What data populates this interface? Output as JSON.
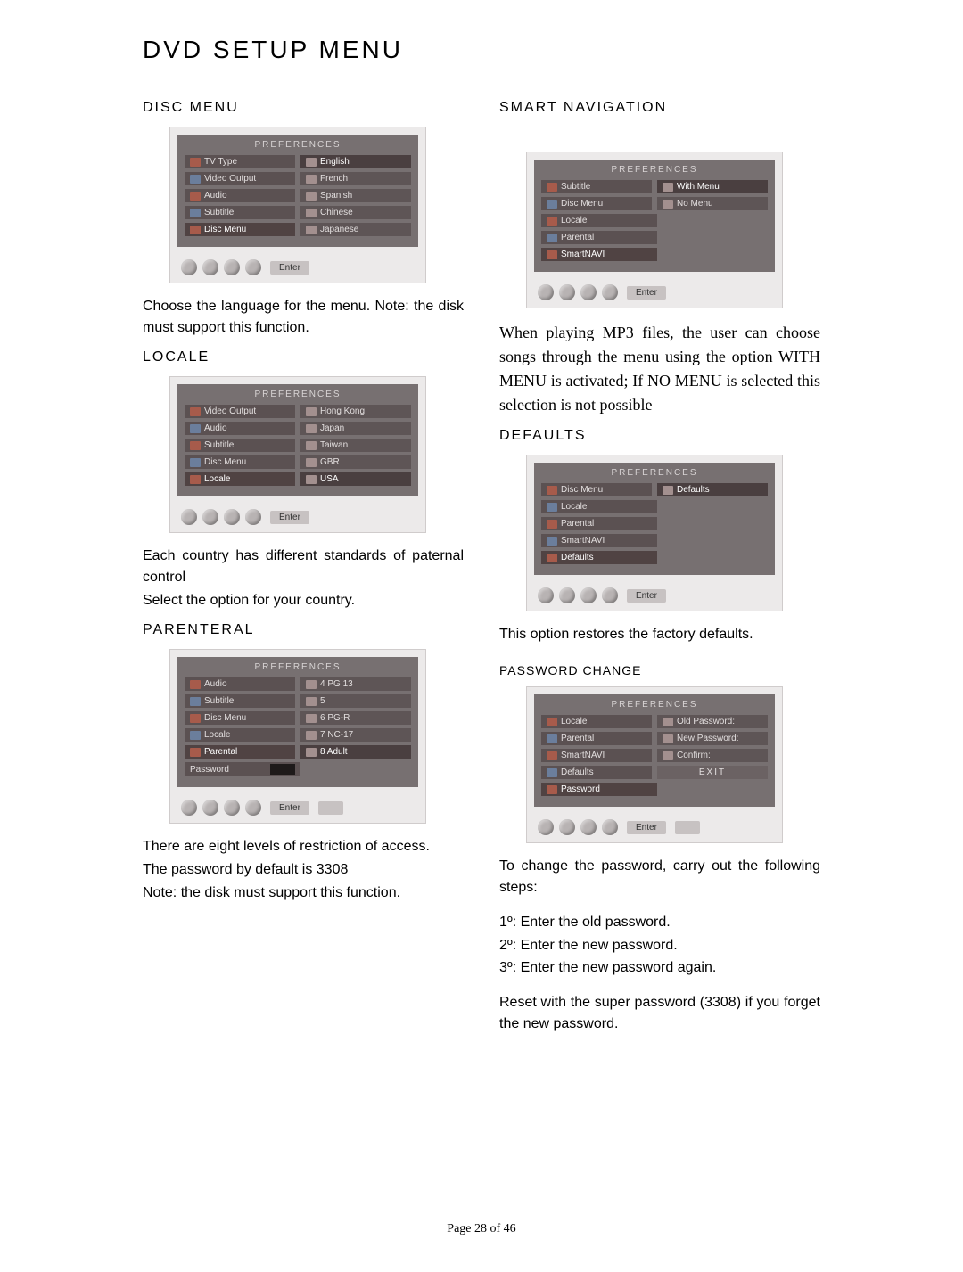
{
  "title": "DVD SETUP MENU",
  "footer": "Page 28 of 46",
  "common": {
    "preferences_label": "PREFERENCES",
    "enter_label": "Enter"
  },
  "left": {
    "disc_menu": {
      "heading": "DISC MENU",
      "screenshot": {
        "left_items": [
          "TV Type",
          "Video Output",
          "Audio",
          "Subtitle",
          "Disc Menu"
        ],
        "left_highlight": 4,
        "right_items": [
          "English",
          "French",
          "Spanish",
          "Chinese",
          "Japanese"
        ],
        "right_highlight": 0
      },
      "para": "Choose the language for the menu. Note: the disk must support this function."
    },
    "locale": {
      "heading": "LOCALE",
      "screenshot": {
        "left_items": [
          "Video Output",
          "Audio",
          "Subtitle",
          "Disc Menu",
          "Locale"
        ],
        "left_highlight": 4,
        "right_items": [
          "Hong Kong",
          "Japan",
          "Taiwan",
          "GBR",
          "USA"
        ],
        "right_highlight": 4
      },
      "para1": "Each country has different standards of paternal control",
      "para2": "Select the option for your country."
    },
    "parenteral": {
      "heading": "PARENTERAL",
      "screenshot": {
        "left_items": [
          "Audio",
          "Subtitle",
          "Disc Menu",
          "Locale",
          "Parental"
        ],
        "left_highlight": 4,
        "right_items": [
          "4 PG 13",
          "5",
          "6 PG-R",
          "7 NC-17",
          "8 Adult"
        ],
        "right_highlight": 4,
        "password_label": "Password",
        "show_extra": true
      },
      "para1": "There are eight levels of restriction of access.",
      "para2": "The password by default is 3308",
      "para3": "Note: the disk must support this function."
    }
  },
  "right": {
    "smart_nav": {
      "heading": "SMART NAVIGATION",
      "screenshot": {
        "left_items": [
          "Subtitle",
          "Disc Menu",
          "Locale",
          "Parental",
          "SmartNAVI"
        ],
        "left_highlight": 4,
        "right_items": [
          "With Menu",
          "No Menu"
        ],
        "right_highlight": 0
      },
      "para": "When playing MP3 files, the user can choose songs through the menu using the option WITH MENU  is activated; If NO MENU  is selected this selection is not possible"
    },
    "defaults": {
      "heading": "DEFAULTS",
      "screenshot": {
        "left_items": [
          "Disc Menu",
          "Locale",
          "Parental",
          "SmartNAVI",
          "Defaults"
        ],
        "left_highlight": 4,
        "right_items": [
          "Defaults"
        ],
        "right_highlight": 0
      },
      "para": "This option restores the factory defaults."
    },
    "password": {
      "heading": "PASSWORD CHANGE",
      "screenshot": {
        "left_items": [
          "Locale",
          "Parental",
          "SmartNAVI",
          "Defaults",
          "Password"
        ],
        "left_highlight": 4,
        "right_items": [
          "Old Password:",
          "New Password:",
          "Confirm:",
          "EXIT"
        ],
        "right_highlight": -1,
        "exit_index": 3,
        "show_extra": true
      },
      "para": "To change the password, carry out the following steps:",
      "steps": {
        "s1": "1º: Enter the old password.",
        "s2": "2º: Enter the new password.",
        "s3": "3º: Enter the new password again."
      },
      "para2": "Reset with the super password (3308) if you forget the new password."
    }
  }
}
